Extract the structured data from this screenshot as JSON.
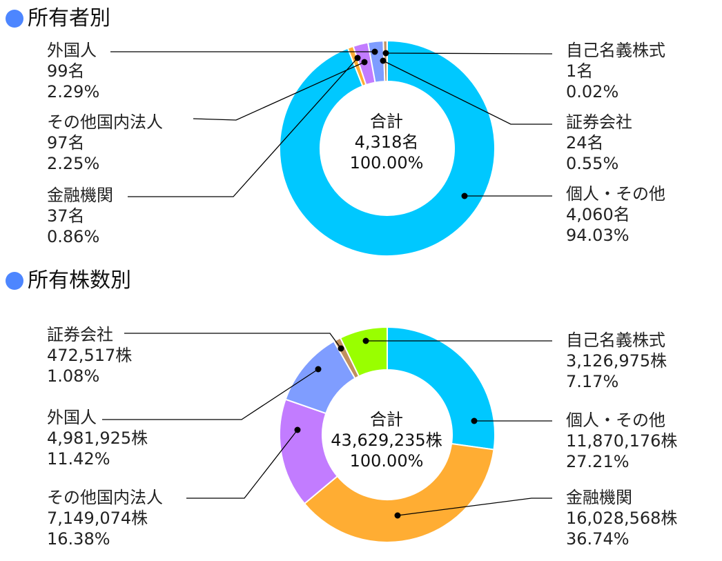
{
  "colors": {
    "heading_dot": "#4d86ff",
    "leader": "#000000",
    "segment_border": "#ffffff"
  },
  "charts": [
    {
      "heading": "所有者別",
      "center": {
        "title": "合計",
        "value": "4,318名",
        "percent": "100.00%"
      },
      "labels": [
        {
          "name": "外国人",
          "value": "99名",
          "percent": "2.29%"
        },
        {
          "name": "その他国内法人",
          "value": "97名",
          "percent": "2.25%"
        },
        {
          "name": "金融機関",
          "value": "37名",
          "percent": "0.86%"
        },
        {
          "name": "自己名義株式",
          "value": "1名",
          "percent": "0.02%"
        },
        {
          "name": "証券会社",
          "value": "24名",
          "percent": "0.55%"
        },
        {
          "name": "個人・その他",
          "value": "4,060名",
          "percent": "94.03%"
        }
      ]
    },
    {
      "heading": "所有株数別",
      "center": {
        "title": "合計",
        "value": "43,629,235株",
        "percent": "100.00%"
      },
      "labels": [
        {
          "name": "証券会社",
          "value": "472,517株",
          "percent": "1.08%"
        },
        {
          "name": "外国人",
          "value": "4,981,925株",
          "percent": "11.42%"
        },
        {
          "name": "その他国内法人",
          "value": "7,149,074株",
          "percent": "16.38%"
        },
        {
          "name": "自己名義株式",
          "value": "3,126,975株",
          "percent": "7.17%"
        },
        {
          "name": "個人・その他",
          "value": "11,870,176株",
          "percent": "27.21%"
        },
        {
          "name": "金融機関",
          "value": "16,028,568株",
          "percent": "36.74%"
        }
      ]
    }
  ],
  "chart_data": [
    {
      "type": "pie",
      "title": "所有者別",
      "categories": [
        "個人・その他",
        "金融機関",
        "その他国内法人",
        "外国人",
        "証券会社",
        "自己名義株式"
      ],
      "values": [
        4060,
        37,
        97,
        99,
        24,
        1
      ],
      "percents": [
        94.03,
        0.86,
        2.25,
        2.29,
        0.55,
        0.02
      ],
      "colors": [
        "#00c8ff",
        "#ffad33",
        "#c27cff",
        "#7f9dff",
        "#c09060",
        "#99ff00"
      ],
      "total": 4318
    },
    {
      "type": "pie",
      "title": "所有株数別",
      "categories": [
        "個人・その他",
        "金融機関",
        "その他国内法人",
        "外国人",
        "証券会社",
        "自己名義株式"
      ],
      "values": [
        11870176,
        16028568,
        7149074,
        4981925,
        472517,
        3126975
      ],
      "percents": [
        27.21,
        36.74,
        16.38,
        11.42,
        1.08,
        7.17
      ],
      "colors": [
        "#00c8ff",
        "#ffad33",
        "#c27cff",
        "#7f9dff",
        "#c09060",
        "#99ff00"
      ],
      "total": 43629235
    }
  ]
}
